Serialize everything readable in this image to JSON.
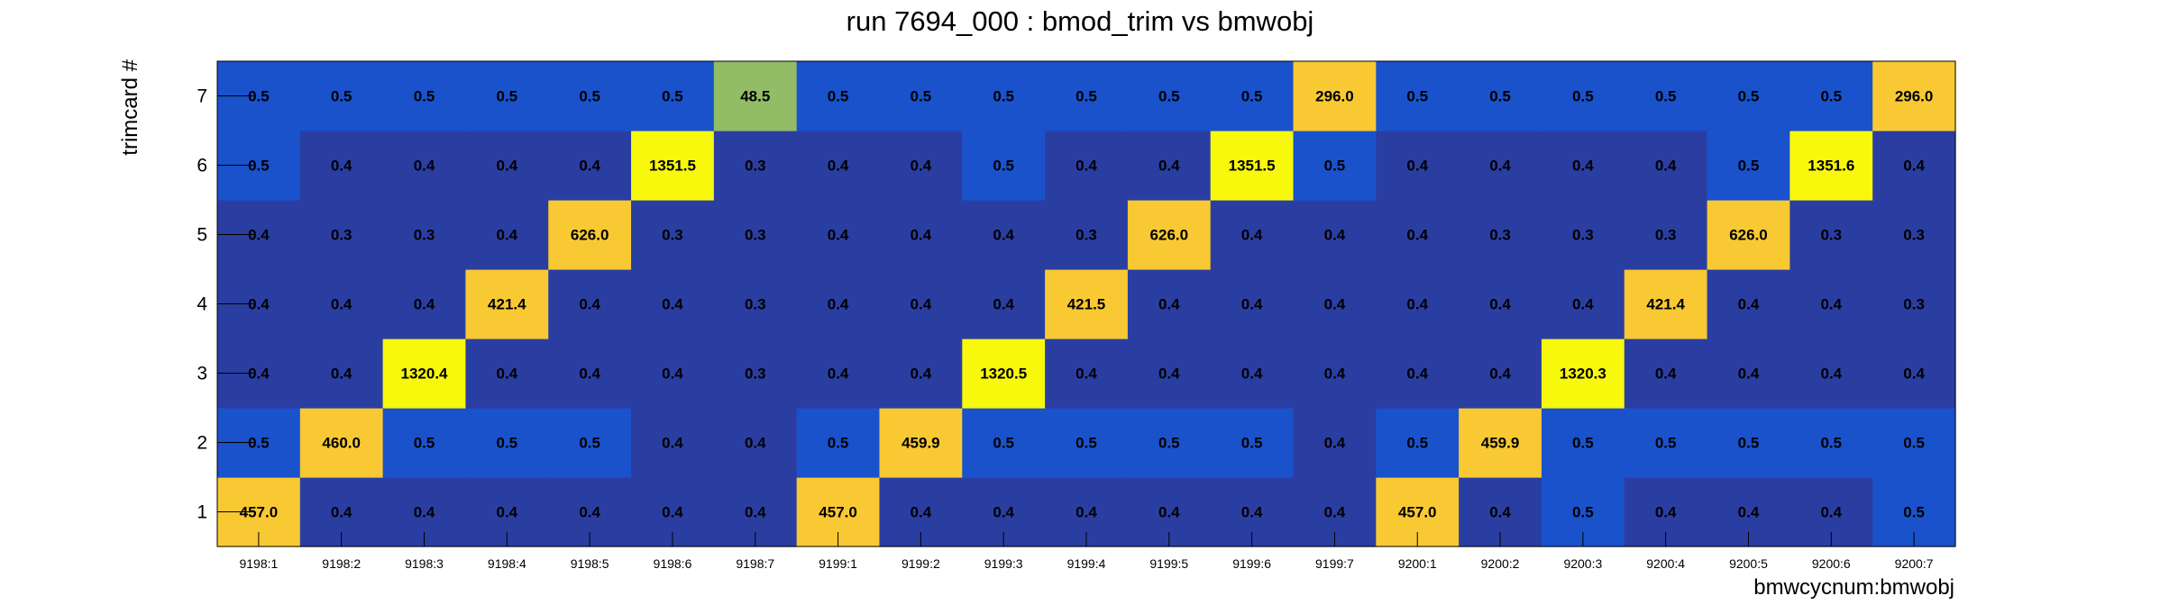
{
  "chart_data": {
    "type": "heatmap",
    "title": "run 7694_000 : bmod_trim vs bmwobj",
    "xlabel": "bmwcycnum:bmwobj",
    "ylabel": "trimcard #",
    "x_categories": [
      "9198:1",
      "9198:2",
      "9198:3",
      "9198:4",
      "9198:5",
      "9198:6",
      "9198:7",
      "9199:1",
      "9199:2",
      "9199:3",
      "9199:4",
      "9199:5",
      "9199:6",
      "9199:7",
      "9200:1",
      "9200:2",
      "9200:3",
      "9200:4",
      "9200:5",
      "9200:6",
      "9200:7"
    ],
    "y_categories": [
      "1",
      "2",
      "3",
      "4",
      "5",
      "6",
      "7"
    ],
    "rows": [
      [
        "457.0",
        "0.4",
        "0.4",
        "0.4",
        "0.4",
        "0.4",
        "0.4",
        "457.0",
        "0.4",
        "0.4",
        "0.4",
        "0.4",
        "0.4",
        "0.4",
        "457.0",
        "0.4",
        "0.5",
        "0.4",
        "0.4",
        "0.4",
        "0.5"
      ],
      [
        "0.5",
        "460.0",
        "0.5",
        "0.5",
        "0.5",
        "0.4",
        "0.4",
        "0.5",
        "459.9",
        "0.5",
        "0.5",
        "0.5",
        "0.5",
        "0.4",
        "0.5",
        "459.9",
        "0.5",
        "0.5",
        "0.5",
        "0.5",
        "0.5"
      ],
      [
        "0.4",
        "0.4",
        "1320.4",
        "0.4",
        "0.4",
        "0.4",
        "0.3",
        "0.4",
        "0.4",
        "1320.5",
        "0.4",
        "0.4",
        "0.4",
        "0.4",
        "0.4",
        "0.4",
        "1320.3",
        "0.4",
        "0.4",
        "0.4",
        "0.4"
      ],
      [
        "0.4",
        "0.4",
        "0.4",
        "421.4",
        "0.4",
        "0.4",
        "0.3",
        "0.4",
        "0.4",
        "0.4",
        "421.5",
        "0.4",
        "0.4",
        "0.4",
        "0.4",
        "0.4",
        "0.4",
        "421.4",
        "0.4",
        "0.4",
        "0.3"
      ],
      [
        "0.4",
        "0.3",
        "0.3",
        "0.4",
        "626.0",
        "0.3",
        "0.3",
        "0.4",
        "0.4",
        "0.4",
        "0.3",
        "626.0",
        "0.4",
        "0.4",
        "0.4",
        "0.3",
        "0.3",
        "0.3",
        "626.0",
        "0.3",
        "0.3"
      ],
      [
        "0.5",
        "0.4",
        "0.4",
        "0.4",
        "0.4",
        "1351.5",
        "0.3",
        "0.4",
        "0.4",
        "0.5",
        "0.4",
        "0.4",
        "1351.5",
        "0.5",
        "0.4",
        "0.4",
        "0.4",
        "0.4",
        "0.5",
        "1351.6",
        "0.4"
      ],
      [
        "0.5",
        "0.5",
        "0.5",
        "0.5",
        "0.5",
        "0.5",
        "48.5",
        "0.5",
        "0.5",
        "0.5",
        "0.5",
        "0.5",
        "0.5",
        "296.0",
        "0.5",
        "0.5",
        "0.5",
        "0.5",
        "0.5",
        "0.5",
        "296.0"
      ]
    ],
    "color_scale": [
      {
        "max": 0.42,
        "color": "#2a3ea2"
      },
      {
        "max": 5,
        "color": "#1a52cc"
      },
      {
        "max": 100,
        "color": "#92bd66"
      },
      {
        "max": 1000,
        "color": "#f8c932"
      },
      {
        "max": 1000000000.0,
        "color": "#f8f80c"
      }
    ],
    "grid": false,
    "legend": "none"
  }
}
